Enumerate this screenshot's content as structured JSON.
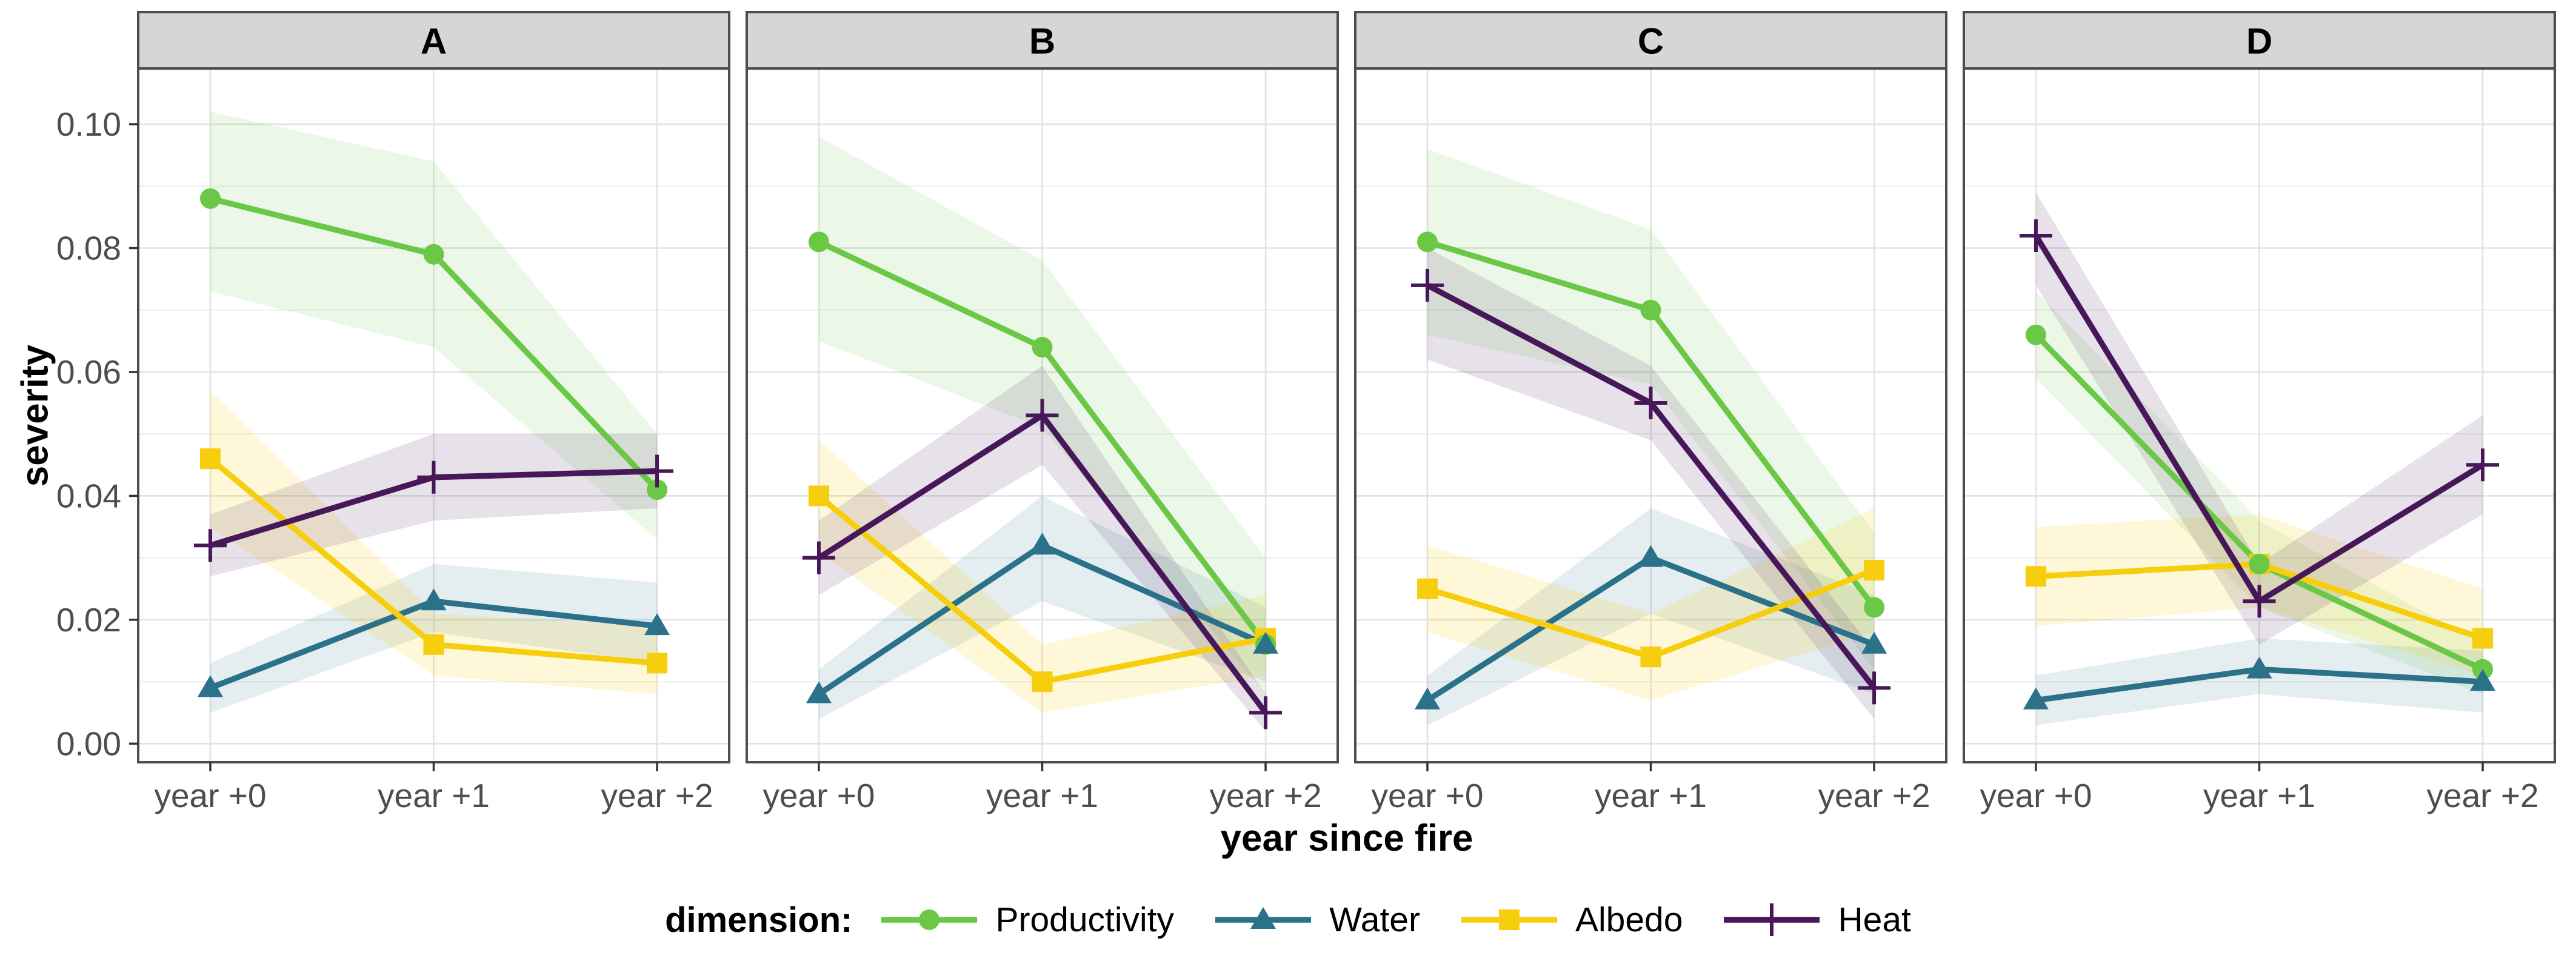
{
  "axes": {
    "y_title": "severity",
    "x_title": "year since fire"
  },
  "legend": {
    "title": "dimension:"
  },
  "series": [
    {
      "id": "productivity",
      "label": "Productivity",
      "marker": "circle",
      "color": "#6BC847",
      "ribbon_opacity": 0.13
    },
    {
      "id": "water",
      "label": "Water",
      "marker": "triangle",
      "color": "#2B7189",
      "ribbon_opacity": 0.13
    },
    {
      "id": "albedo",
      "label": "Albedo",
      "marker": "square",
      "color": "#F6CE0E",
      "ribbon_opacity": 0.16
    },
    {
      "id": "heat",
      "label": "Heat",
      "marker": "plus",
      "color": "#471759",
      "ribbon_opacity": 0.13
    }
  ],
  "chart_data": {
    "type": "line",
    "title": "",
    "xlabel": "year since fire",
    "ylabel": "severity",
    "x_categories": [
      "year +0",
      "year +1",
      "year +2"
    ],
    "x_positions": [
      0.122,
      0.5,
      0.878
    ],
    "y_tick_labels": [
      "0.00",
      "0.02",
      "0.04",
      "0.06",
      "0.08",
      "0.10"
    ],
    "y_major": [
      0,
      0.02,
      0.04,
      0.06,
      0.08,
      0.1
    ],
    "y_minor": [
      0.01,
      0.03,
      0.05,
      0.07,
      0.09
    ],
    "ylim": [
      -0.003,
      0.109
    ],
    "grid": "horizontal major+minor, vertical at categories",
    "legend_position": "bottom",
    "marker_draw_order": [
      "albedo",
      "productivity",
      "water",
      "heat"
    ],
    "facets": [
      {
        "label": "A",
        "series": [
          {
            "name": "Productivity",
            "values": [
              0.088,
              0.079,
              0.041
            ],
            "lo": [
              0.073,
              0.064,
              0.033
            ],
            "hi": [
              0.102,
              0.094,
              0.05
            ]
          },
          {
            "name": "Water",
            "values": [
              0.009,
              0.023,
              0.019
            ],
            "lo": [
              0.005,
              0.018,
              0.013
            ],
            "hi": [
              0.013,
              0.029,
              0.026
            ]
          },
          {
            "name": "Albedo",
            "values": [
              0.046,
              0.016,
              0.013
            ],
            "lo": [
              0.035,
              0.011,
              0.008
            ],
            "hi": [
              0.057,
              0.021,
              0.019
            ]
          },
          {
            "name": "Heat",
            "values": [
              0.032,
              0.043,
              0.044
            ],
            "lo": [
              0.027,
              0.036,
              0.038
            ],
            "hi": [
              0.037,
              0.05,
              0.05
            ]
          }
        ]
      },
      {
        "label": "B",
        "series": [
          {
            "name": "Productivity",
            "values": [
              0.081,
              0.064,
              0.016
            ],
            "lo": [
              0.065,
              0.051,
              0.008
            ],
            "hi": [
              0.098,
              0.078,
              0.03
            ]
          },
          {
            "name": "Water",
            "values": [
              0.008,
              0.032,
              0.016
            ],
            "lo": [
              0.004,
              0.023,
              0.01
            ],
            "hi": [
              0.012,
              0.04,
              0.022
            ]
          },
          {
            "name": "Albedo",
            "values": [
              0.04,
              0.01,
              0.017
            ],
            "lo": [
              0.031,
              0.005,
              0.011
            ],
            "hi": [
              0.049,
              0.016,
              0.024
            ]
          },
          {
            "name": "Heat",
            "values": [
              0.03,
              0.053,
              0.005
            ],
            "lo": [
              0.024,
              0.045,
              0.002
            ],
            "hi": [
              0.036,
              0.061,
              0.008
            ]
          }
        ]
      },
      {
        "label": "C",
        "series": [
          {
            "name": "Productivity",
            "values": [
              0.081,
              0.07,
              0.022
            ],
            "lo": [
              0.066,
              0.058,
              0.012
            ],
            "hi": [
              0.096,
              0.083,
              0.034
            ]
          },
          {
            "name": "Water",
            "values": [
              0.007,
              0.03,
              0.016
            ],
            "lo": [
              0.003,
              0.021,
              0.008
            ],
            "hi": [
              0.011,
              0.038,
              0.024
            ]
          },
          {
            "name": "Albedo",
            "values": [
              0.025,
              0.014,
              0.028
            ],
            "lo": [
              0.018,
              0.007,
              0.018
            ],
            "hi": [
              0.032,
              0.021,
              0.038
            ]
          },
          {
            "name": "Heat",
            "values": [
              0.074,
              0.055,
              0.009
            ],
            "lo": [
              0.062,
              0.049,
              0.004
            ],
            "hi": [
              0.08,
              0.061,
              0.015
            ]
          }
        ]
      },
      {
        "label": "D",
        "series": [
          {
            "name": "Productivity",
            "values": [
              0.066,
              0.029,
              0.012
            ],
            "lo": [
              0.059,
              0.022,
              0.008
            ],
            "hi": [
              0.073,
              0.036,
              0.016
            ]
          },
          {
            "name": "Water",
            "values": [
              0.007,
              0.012,
              0.01
            ],
            "lo": [
              0.003,
              0.008,
              0.005
            ],
            "hi": [
              0.011,
              0.017,
              0.015
            ]
          },
          {
            "name": "Albedo",
            "values": [
              0.027,
              0.029,
              0.017
            ],
            "lo": [
              0.019,
              0.022,
              0.011
            ],
            "hi": [
              0.035,
              0.037,
              0.025
            ]
          },
          {
            "name": "Heat",
            "values": [
              0.082,
              0.023,
              0.045
            ],
            "lo": [
              0.074,
              0.016,
              0.037
            ],
            "hi": [
              0.089,
              0.029,
              0.053
            ]
          }
        ]
      }
    ],
    "colors": {
      "productivity": "#6BC847",
      "water": "#2B7189",
      "albedo": "#F6CE0E",
      "heat": "#471759",
      "strip_fill": "#D6D6D6",
      "panel_border": "#4D4D4D",
      "grid_major": "#E4E4E4",
      "grid_minor": "#F0F0F0",
      "tick_text": "#4D4D4D"
    }
  }
}
